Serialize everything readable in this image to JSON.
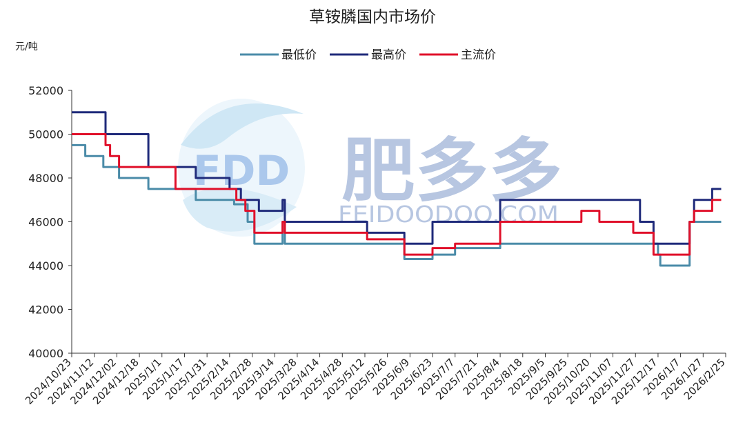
{
  "chart_data": {
    "type": "line",
    "title": "草铵膦国内市场价",
    "ylabel": "元/吨",
    "xlabel": "",
    "ylim": [
      40000,
      52000
    ],
    "y_ticks": [
      "40000",
      "42000",
      "44000",
      "46000",
      "48000",
      "50000",
      "52000"
    ],
    "x_tick_labels": [
      "2024/10/23",
      "2024/11/12",
      "2024/12/02",
      "2024/12/18",
      "2025/1/1",
      "2025/1/17",
      "2025/1/31",
      "2025/2/14",
      "2025/2/28",
      "2025/3/14",
      "2025/3/28",
      "2025/4/14",
      "2025/4/28",
      "2025/5/12",
      "2025/5/26",
      "2025/6/9",
      "2025/6/23",
      "2025/7/7",
      "2025/7/21",
      "2025/8/4",
      "2025/8/18",
      "2025/9/5",
      "2025/9/25",
      "2025/10/20",
      "2025/11/07",
      "2025/11/27",
      "2025/12/17",
      "2026/1/7",
      "2026/1/27",
      "2026/2/25"
    ],
    "legend_position": "top-center",
    "grid": false,
    "step": true,
    "series": [
      {
        "name": "最低价",
        "color": "#4a8ba8",
        "points": [
          [
            0,
            49500
          ],
          [
            0.6,
            49000
          ],
          [
            1.4,
            48500
          ],
          [
            2.1,
            48000
          ],
          [
            3.4,
            47500
          ],
          [
            5.5,
            47000
          ],
          [
            7.2,
            46800
          ],
          [
            7.8,
            46000
          ],
          [
            8.1,
            45000
          ],
          [
            9.3,
            45000
          ],
          [
            9.35,
            46000
          ],
          [
            9.45,
            45000
          ],
          [
            14.7,
            45000
          ],
          [
            14.75,
            44300
          ],
          [
            15.9,
            44300
          ],
          [
            16.0,
            44500
          ],
          [
            16.9,
            44500
          ],
          [
            17.0,
            44800
          ],
          [
            18.9,
            44800
          ],
          [
            19.0,
            45000
          ],
          [
            25.9,
            45000
          ],
          [
            26.0,
            44500
          ],
          [
            26.1,
            44000
          ],
          [
            27.3,
            44000
          ],
          [
            27.4,
            46000
          ],
          [
            28.8,
            46000
          ]
        ]
      },
      {
        "name": "最高价",
        "color": "#1f2a7a",
        "points": [
          [
            0,
            51000
          ],
          [
            1.5,
            50000
          ],
          [
            3.4,
            48500
          ],
          [
            5.5,
            48000
          ],
          [
            7.0,
            47500
          ],
          [
            7.5,
            47000
          ],
          [
            8.3,
            46500
          ],
          [
            9.3,
            46500
          ],
          [
            9.35,
            47000
          ],
          [
            9.45,
            46000
          ],
          [
            13.0,
            46000
          ],
          [
            13.1,
            45500
          ],
          [
            14.7,
            45500
          ],
          [
            14.75,
            45000
          ],
          [
            15.9,
            45000
          ],
          [
            16.0,
            46000
          ],
          [
            18.9,
            46000
          ],
          [
            19.0,
            47000
          ],
          [
            25.1,
            47000
          ],
          [
            25.2,
            46000
          ],
          [
            25.7,
            46000
          ],
          [
            25.8,
            45000
          ],
          [
            27.3,
            45000
          ],
          [
            27.4,
            46000
          ],
          [
            27.6,
            47000
          ],
          [
            28.3,
            47000
          ],
          [
            28.4,
            47500
          ],
          [
            28.8,
            47500
          ]
        ]
      },
      {
        "name": "主流价",
        "color": "#e0102a",
        "points": [
          [
            0,
            50000
          ],
          [
            1.5,
            49500
          ],
          [
            1.7,
            49000
          ],
          [
            2.1,
            48500
          ],
          [
            4.6,
            47500
          ],
          [
            7.3,
            47000
          ],
          [
            7.7,
            46500
          ],
          [
            8.1,
            45500
          ],
          [
            9.3,
            45500
          ],
          [
            9.35,
            46000
          ],
          [
            9.45,
            45500
          ],
          [
            13.0,
            45500
          ],
          [
            13.1,
            45200
          ],
          [
            14.7,
            45200
          ],
          [
            14.75,
            44500
          ],
          [
            15.9,
            44500
          ],
          [
            16.0,
            44800
          ],
          [
            16.9,
            44800
          ],
          [
            17.0,
            45000
          ],
          [
            18.9,
            45000
          ],
          [
            19.0,
            46000
          ],
          [
            22.5,
            46000
          ],
          [
            22.6,
            46500
          ],
          [
            23.3,
            46500
          ],
          [
            23.4,
            46000
          ],
          [
            24.8,
            46000
          ],
          [
            24.9,
            45500
          ],
          [
            25.7,
            45500
          ],
          [
            25.8,
            44500
          ],
          [
            27.3,
            44500
          ],
          [
            27.4,
            46000
          ],
          [
            27.6,
            46500
          ],
          [
            28.3,
            46500
          ],
          [
            28.4,
            47000
          ],
          [
            28.8,
            47000
          ]
        ]
      }
    ]
  },
  "watermark": {
    "logo_text": "FDD",
    "brand_text": "肥多多",
    "domain_text": "FEIDOODOO.COM"
  }
}
